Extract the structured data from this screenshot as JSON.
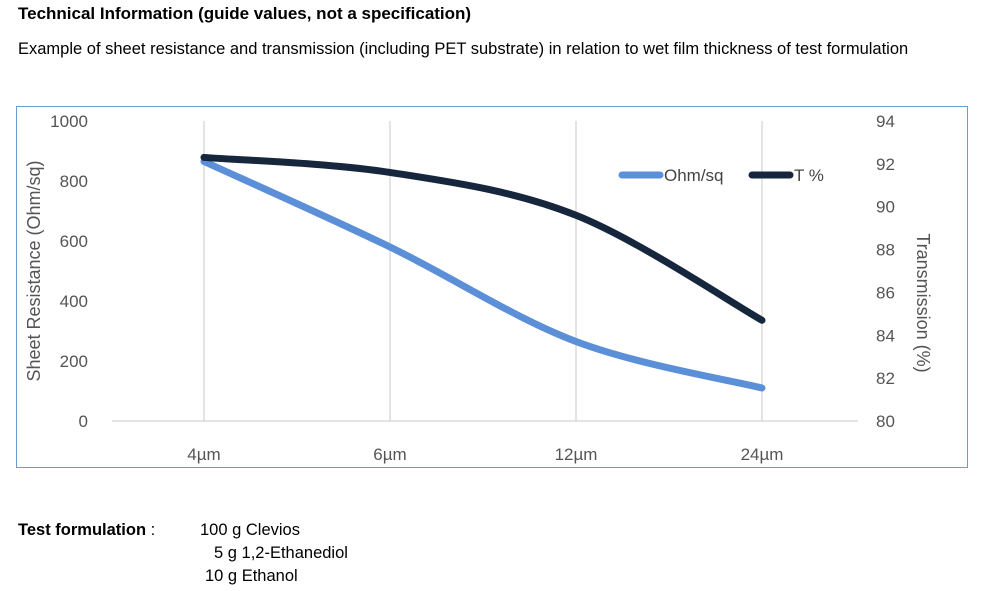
{
  "heading": "Technical Information (guide values, not a specification)",
  "description": "Example of sheet resistance and transmission (including PET substrate) in relation to wet film thickness of test formulation",
  "chart_data": {
    "type": "line",
    "categories": [
      "4µm",
      "6µm",
      "12µm",
      "24µm"
    ],
    "series": [
      {
        "name": "Ohm/sq",
        "axis": "left",
        "color": "#5b8fd8",
        "values": [
          865,
          580,
          265,
          110
        ]
      },
      {
        "name": "T %",
        "axis": "right",
        "color": "#16263d",
        "values": [
          92.3,
          91.6,
          89.6,
          84.7
        ]
      }
    ],
    "y_left": {
      "label": "Sheet Resistance (Ohm/sq)",
      "min": 0,
      "max": 1000,
      "ticks": [
        "0",
        "200",
        "400",
        "600",
        "800",
        "1000"
      ]
    },
    "y_right": {
      "label": "Transmission (%)",
      "min": 80,
      "max": 94,
      "ticks": [
        "80",
        "82",
        "84",
        "86",
        "88",
        "90",
        "92",
        "94"
      ]
    },
    "legend_position": "top-right",
    "grid": "vertical-major"
  },
  "formulation": {
    "label": "Test formulation",
    "separator": ":",
    "items": [
      "100 g Clevios",
      "5 g 1,2-Ethanediol",
      "10 g Ethanol"
    ]
  }
}
